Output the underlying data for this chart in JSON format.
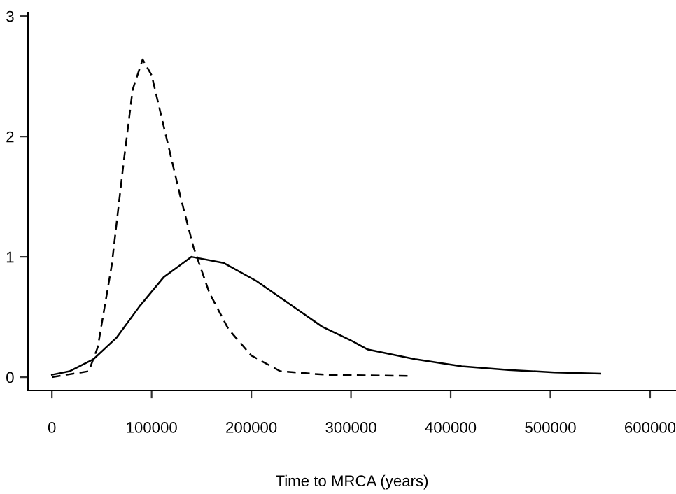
{
  "chart_data": {
    "type": "line",
    "xlabel": "Time to MRCA (years)",
    "xlim": [
      -24000,
      626000
    ],
    "ylim": [
      -0.11,
      3.03
    ],
    "xticks": [
      0,
      100000,
      200000,
      300000,
      400000,
      500000,
      600000
    ],
    "yticks": [
      0,
      1,
      2,
      3
    ],
    "grid": false,
    "legend": false,
    "series": [
      {
        "color": "#000000",
        "line_style": "solid",
        "x": [
          0,
          18000,
          41700,
          65000,
          88000,
          112000,
          140000,
          172000,
          205000,
          252000,
          271000,
          299000,
          317000,
          364000,
          411000,
          458000,
          504000,
          550000
        ],
        "values": [
          0.02,
          0.05,
          0.15,
          0.33,
          0.59,
          0.83,
          1.0,
          0.95,
          0.8,
          0.53,
          0.42,
          0.31,
          0.23,
          0.15,
          0.09,
          0.06,
          0.04,
          0.03
        ]
      },
      {
        "color": "#000000",
        "line_style": "dashed",
        "x": [
          0,
          37000,
          46000,
          60000,
          72000,
          81000,
          91000,
          100000,
          114000,
          128000,
          142000,
          158000,
          177000,
          200000,
          229000,
          275000,
          361000
        ],
        "values": [
          0.0,
          0.05,
          0.25,
          0.93,
          1.79,
          2.39,
          2.64,
          2.51,
          2.02,
          1.53,
          1.08,
          0.7,
          0.4,
          0.18,
          0.05,
          0.02,
          0.01
        ]
      }
    ]
  }
}
